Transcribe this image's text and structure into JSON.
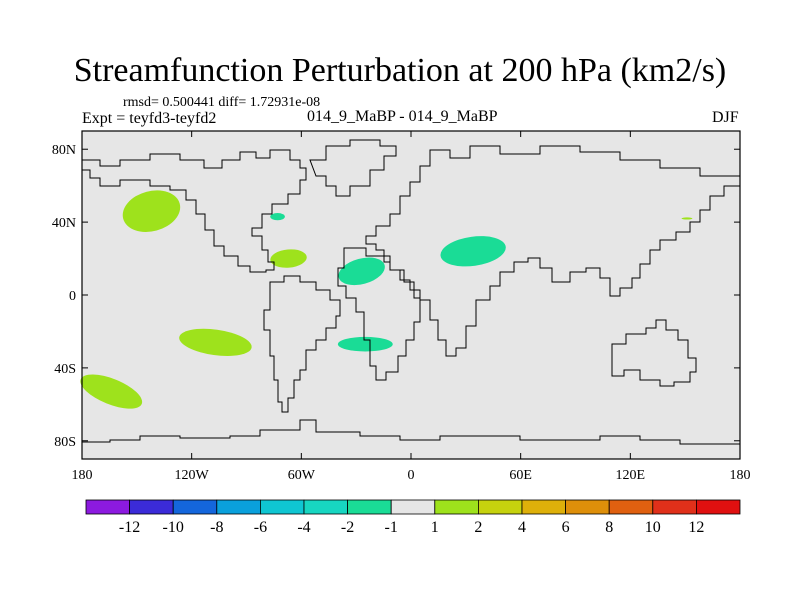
{
  "title": "Streamfunction Perturbation at 200 hPa (km2/s)",
  "stats_text": "rmsd= 0.500441 diff= 1.72931e-08",
  "left_label": "Expt = teyfd3-teyfd2",
  "center_label": "014_9_MaBP - 014_9_MaBP",
  "right_label": "DJF",
  "chart_data": {
    "type": "contour-map",
    "projection": "cylindrical-equidistant",
    "xlim": [
      -180,
      180
    ],
    "ylim": [
      -90,
      90
    ],
    "x_ticks": [
      {
        "value": -180,
        "label": "180"
      },
      {
        "value": -120,
        "label": "120W"
      },
      {
        "value": -60,
        "label": "60W"
      },
      {
        "value": 0,
        "label": "0"
      },
      {
        "value": 60,
        "label": "60E"
      },
      {
        "value": 120,
        "label": "120E"
      },
      {
        "value": 180,
        "label": "180"
      }
    ],
    "y_ticks": [
      {
        "value": 80,
        "label": "80N"
      },
      {
        "value": 40,
        "label": "40N"
      },
      {
        "value": 0,
        "label": "0"
      },
      {
        "value": -40,
        "label": "40S"
      },
      {
        "value": -80,
        "label": "80S"
      }
    ],
    "background_color": "#e6e6e6",
    "colorbar": {
      "levels": [
        "-12",
        "-10",
        "-8",
        "-6",
        "-4",
        "-2",
        "-1",
        "1",
        "2",
        "4",
        "6",
        "8",
        "10",
        "12"
      ],
      "colors": [
        "#8c1adf",
        "#3b2bd8",
        "#1466dc",
        "#0aa0dc",
        "#0fc6d2",
        "#17d6c1",
        "#1adc96",
        "#e6e6e6",
        "#9ee21c",
        "#c6d20e",
        "#deb00a",
        "#de8f0a",
        "#e06010",
        "#e0301a",
        "#e01010"
      ]
    },
    "anomalies": [
      {
        "region": "NE Pacific",
        "lon": -142,
        "lat": 46,
        "dlon": 16,
        "dlat": 11,
        "angle": -15,
        "bin": "1 to 2",
        "color": "#9ee21c"
      },
      {
        "region": "SE Pacific",
        "lon": -107,
        "lat": -26,
        "dlon": 20,
        "dlat": 7,
        "angle": 8,
        "bin": "1 to 2",
        "color": "#9ee21c"
      },
      {
        "region": "S Pacific",
        "lon": -164,
        "lat": -53,
        "dlon": 18,
        "dlat": 7,
        "angle": 22,
        "bin": "1 to 2",
        "color": "#9ee21c"
      },
      {
        "region": "Caribbean",
        "lon": -67,
        "lat": 20,
        "dlon": 10,
        "dlat": 5,
        "angle": -5,
        "bin": "1 to 2",
        "color": "#9ee21c"
      },
      {
        "region": "W Pacific",
        "lon": 151,
        "lat": 42,
        "dlon": 3,
        "dlat": 0.6,
        "angle": 0,
        "bin": "1 to 2",
        "color": "#9ee21c"
      },
      {
        "region": "NE America",
        "lon": -73,
        "lat": 43,
        "dlon": 4,
        "dlat": 2,
        "angle": 0,
        "bin": "-2 to -1",
        "color": "#1adc96"
      },
      {
        "region": "Tropical Atlantic",
        "lon": -27,
        "lat": 13,
        "dlon": 13,
        "dlat": 7,
        "angle": -15,
        "bin": "-2 to -1",
        "color": "#1adc96"
      },
      {
        "region": "S Atlantic",
        "lon": -25,
        "lat": -27,
        "dlon": 15,
        "dlat": 4,
        "angle": 0,
        "bin": "-2 to -1",
        "color": "#1adc96"
      },
      {
        "region": "Middle East",
        "lon": 34,
        "lat": 24,
        "dlon": 18,
        "dlat": 8,
        "angle": -8,
        "bin": "-2 to -1",
        "color": "#1adc96"
      }
    ]
  }
}
